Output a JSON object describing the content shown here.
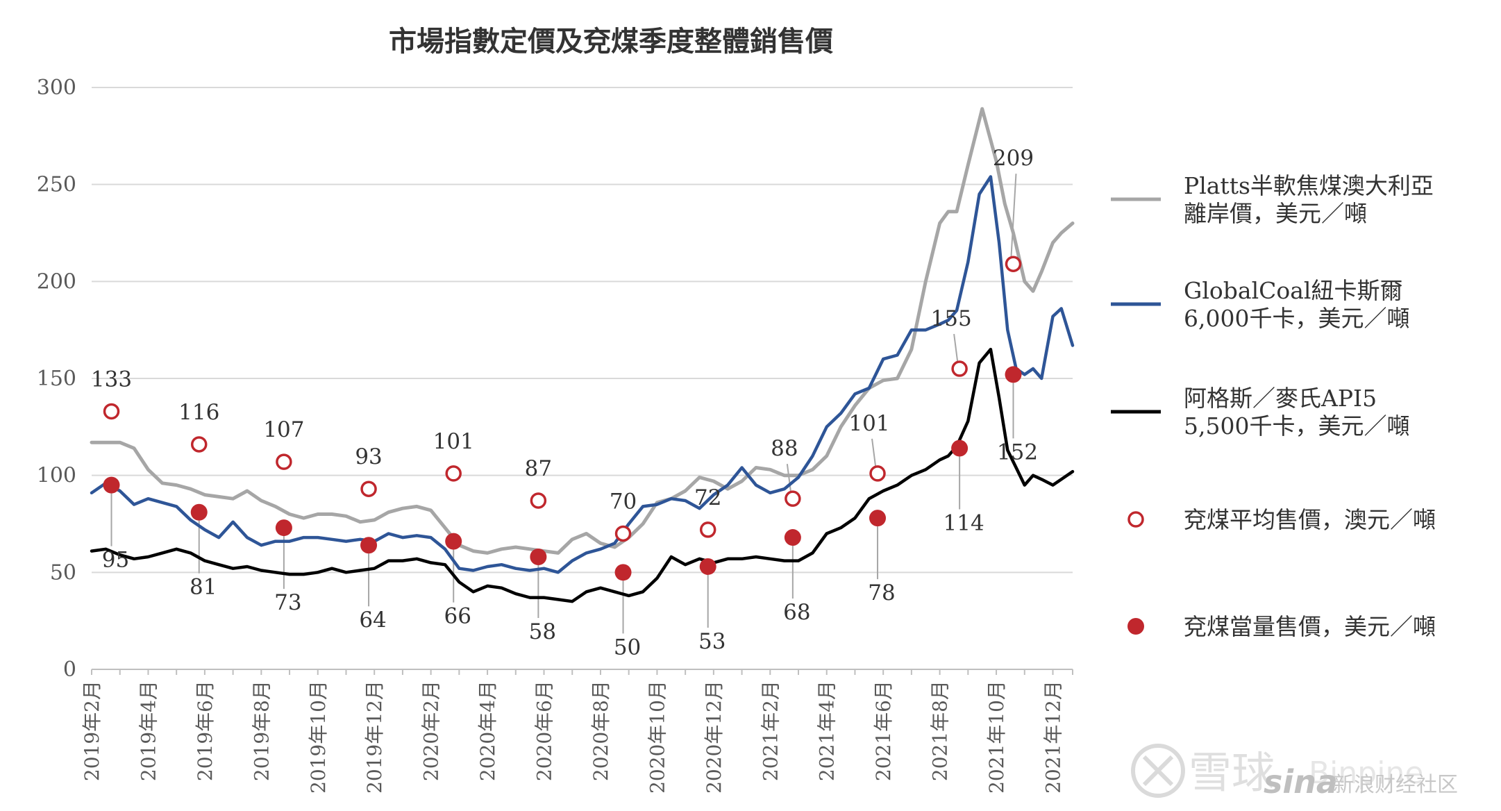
{
  "chart_data": {
    "type": "line",
    "title": "市場指數定價及兗煤季度整體銷售價",
    "ylim": [
      0,
      300
    ],
    "yticks": [
      "0",
      "50",
      "100",
      "150",
      "200",
      "250",
      "300"
    ],
    "x_tick_labels": [
      "2019年2月",
      "2019年4月",
      "2019年6月",
      "2019年8月",
      "2019年10月",
      "2019年12月",
      "2020年2月",
      "2020年4月",
      "2020年6月",
      "2020年8月",
      "2020年10月",
      "2020年12月",
      "2021年2月",
      "2021年4月",
      "2021年6月",
      "2021年8月",
      "2021年10月",
      "2021年12月"
    ],
    "x_range_months": [
      0,
      34.7
    ],
    "grid": "horizontal",
    "legend_position": "right",
    "series": [
      {
        "name": "Platts半軟焦煤澳大利亞\n離岸價，美元／噸",
        "color": "#a6a6a6",
        "x": [
          0,
          1,
          1.5,
          2,
          2.5,
          3,
          3.5,
          4,
          4.5,
          5,
          5.5,
          6,
          6.5,
          7,
          7.5,
          8,
          8.5,
          9,
          9.5,
          10,
          10.5,
          11,
          11.5,
          12,
          12.5,
          13,
          13.5,
          14,
          14.5,
          15,
          15.5,
          16,
          16.5,
          17,
          17.5,
          18,
          18.5,
          19,
          19.5,
          20,
          20.5,
          21,
          21.5,
          22,
          22.5,
          23,
          23.5,
          24,
          24.5,
          25,
          25.5,
          26,
          26.5,
          27,
          27.5,
          28,
          28.5,
          29,
          29.5,
          30,
          30.3,
          30.6,
          31,
          31.5,
          32,
          32.3,
          32.6,
          33,
          33.3,
          33.6,
          34,
          34.3,
          34.7
        ],
        "values": [
          117,
          117,
          114,
          103,
          96,
          95,
          93,
          90,
          89,
          88,
          92,
          87,
          84,
          80,
          78,
          80,
          80,
          79,
          76,
          77,
          81,
          83,
          84,
          82,
          73,
          64,
          61,
          60,
          62,
          63,
          62,
          61,
          60,
          67,
          70,
          65,
          63,
          68,
          75,
          86,
          88,
          92,
          99,
          97,
          93,
          97,
          104,
          103,
          100,
          100,
          103,
          110,
          125,
          136,
          145,
          149,
          150,
          165,
          200,
          230,
          236,
          236,
          260,
          289,
          262,
          240,
          225,
          200,
          195,
          205,
          220,
          225,
          230
        ]
      },
      {
        "name": "GlobalCoal紐卡斯爾\n6,000千卡，美元／噸",
        "color": "#2e5597",
        "x": [
          0,
          0.5,
          1,
          1.5,
          2,
          2.5,
          3,
          3.5,
          4,
          4.5,
          5,
          5.5,
          6,
          6.5,
          7,
          7.5,
          8,
          8.5,
          9,
          9.5,
          10,
          10.5,
          11,
          11.5,
          12,
          12.5,
          13,
          13.5,
          14,
          14.5,
          15,
          15.5,
          16,
          16.5,
          17,
          17.5,
          18,
          18.5,
          19,
          19.5,
          20,
          20.5,
          21,
          21.5,
          22,
          22.5,
          23,
          23.5,
          24,
          24.5,
          25,
          25.5,
          26,
          26.5,
          27,
          27.5,
          28,
          28.5,
          29,
          29.5,
          30,
          30.3,
          30.6,
          31,
          31.4,
          31.8,
          32.1,
          32.4,
          32.7,
          33,
          33.3,
          33.6,
          34,
          34.3,
          34.7
        ],
        "values": [
          91,
          96,
          92,
          85,
          88,
          86,
          84,
          77,
          72,
          68,
          76,
          68,
          64,
          66,
          66,
          68,
          68,
          67,
          66,
          67,
          66,
          70,
          68,
          69,
          68,
          62,
          52,
          51,
          53,
          54,
          52,
          51,
          52,
          50,
          56,
          60,
          62,
          65,
          75,
          84,
          85,
          88,
          87,
          83,
          90,
          95,
          104,
          95,
          91,
          93,
          99,
          110,
          125,
          132,
          142,
          145,
          160,
          162,
          175,
          175,
          178,
          180,
          185,
          210,
          245,
          254,
          220,
          175,
          155,
          152,
          155,
          150,
          182,
          186,
          167
        ]
      },
      {
        "name": "阿格斯／麥氏API5\n5,500千卡，美元／噸",
        "color": "#000000",
        "x": [
          0,
          0.5,
          1,
          1.5,
          2,
          2.5,
          3,
          3.5,
          4,
          4.5,
          5,
          5.5,
          6,
          6.5,
          7,
          7.5,
          8,
          8.5,
          9,
          9.5,
          10,
          10.5,
          11,
          11.5,
          12,
          12.5,
          13,
          13.5,
          14,
          14.5,
          15,
          15.5,
          16,
          16.5,
          17,
          17.5,
          18,
          18.5,
          19,
          19.5,
          20,
          20.5,
          21,
          21.5,
          22,
          22.5,
          23,
          23.5,
          24,
          24.5,
          25,
          25.5,
          26,
          26.5,
          27,
          27.5,
          28,
          28.5,
          29,
          29.5,
          30,
          30.3,
          30.6,
          31,
          31.4,
          31.8,
          32.1,
          32.4,
          32.7,
          33,
          33.3,
          33.6,
          34,
          34.3,
          34.7
        ],
        "values": [
          61,
          62,
          59,
          57,
          58,
          60,
          62,
          60,
          56,
          54,
          52,
          53,
          51,
          50,
          49,
          49,
          50,
          52,
          50,
          51,
          52,
          56,
          56,
          57,
          55,
          54,
          45,
          40,
          43,
          42,
          39,
          37,
          37,
          36,
          35,
          40,
          42,
          40,
          38,
          40,
          47,
          58,
          54,
          57,
          55,
          57,
          57,
          58,
          57,
          56,
          56,
          60,
          70,
          73,
          78,
          88,
          92,
          95,
          100,
          103,
          108,
          110,
          115,
          128,
          158,
          165,
          140,
          113,
          104,
          95,
          100,
          98,
          95,
          98,
          102
        ]
      }
    ],
    "markers": [
      {
        "name": "兗煤平均售價，澳元／噸",
        "style": "open-circle",
        "color": "#c0272d",
        "x": [
          0.7,
          3.8,
          6.8,
          9.8,
          12.8,
          15.8,
          18.8,
          21.8,
          24.8,
          27.8,
          30.7,
          32.6
        ],
        "values": [
          133,
          116,
          107,
          93,
          101,
          87,
          70,
          72,
          88,
          101,
          155,
          209
        ],
        "labels": [
          "133",
          "116",
          "107",
          "93",
          "101",
          "87",
          "70",
          "72",
          "88",
          "101",
          "155",
          "209"
        ]
      },
      {
        "name": "兗煤當量售價，美元／噸",
        "style": "filled-circle",
        "color": "#c0272d",
        "x": [
          0.7,
          3.8,
          6.8,
          9.8,
          12.8,
          15.8,
          18.8,
          21.8,
          24.8,
          27.8,
          30.7,
          32.6
        ],
        "values": [
          95,
          81,
          73,
          64,
          66,
          58,
          50,
          53,
          68,
          78,
          114,
          152
        ],
        "labels": [
          "95",
          "81",
          "73",
          "64",
          "66",
          "58",
          "50",
          "53",
          "68",
          "78",
          "114",
          "152"
        ]
      }
    ]
  },
  "watermarks": {
    "xueqiu": "雪球",
    "user": "Binpine",
    "sina": "sina",
    "sina_text": "新浪财经社区"
  }
}
